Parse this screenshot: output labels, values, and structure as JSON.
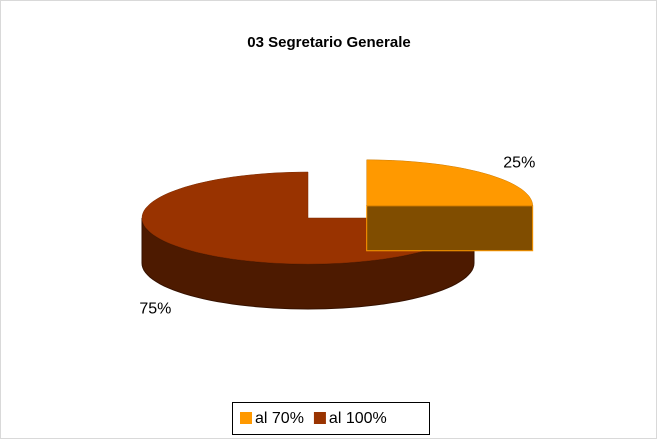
{
  "chart_data": {
    "type": "pie",
    "title": "03 Segretario Generale",
    "categories": [
      "al 70%",
      "al 100%"
    ],
    "values": [
      25,
      75
    ],
    "value_labels": [
      "25%",
      "75%"
    ],
    "colors": [
      "#ff9900",
      "#993300"
    ],
    "legend": "bottom"
  }
}
